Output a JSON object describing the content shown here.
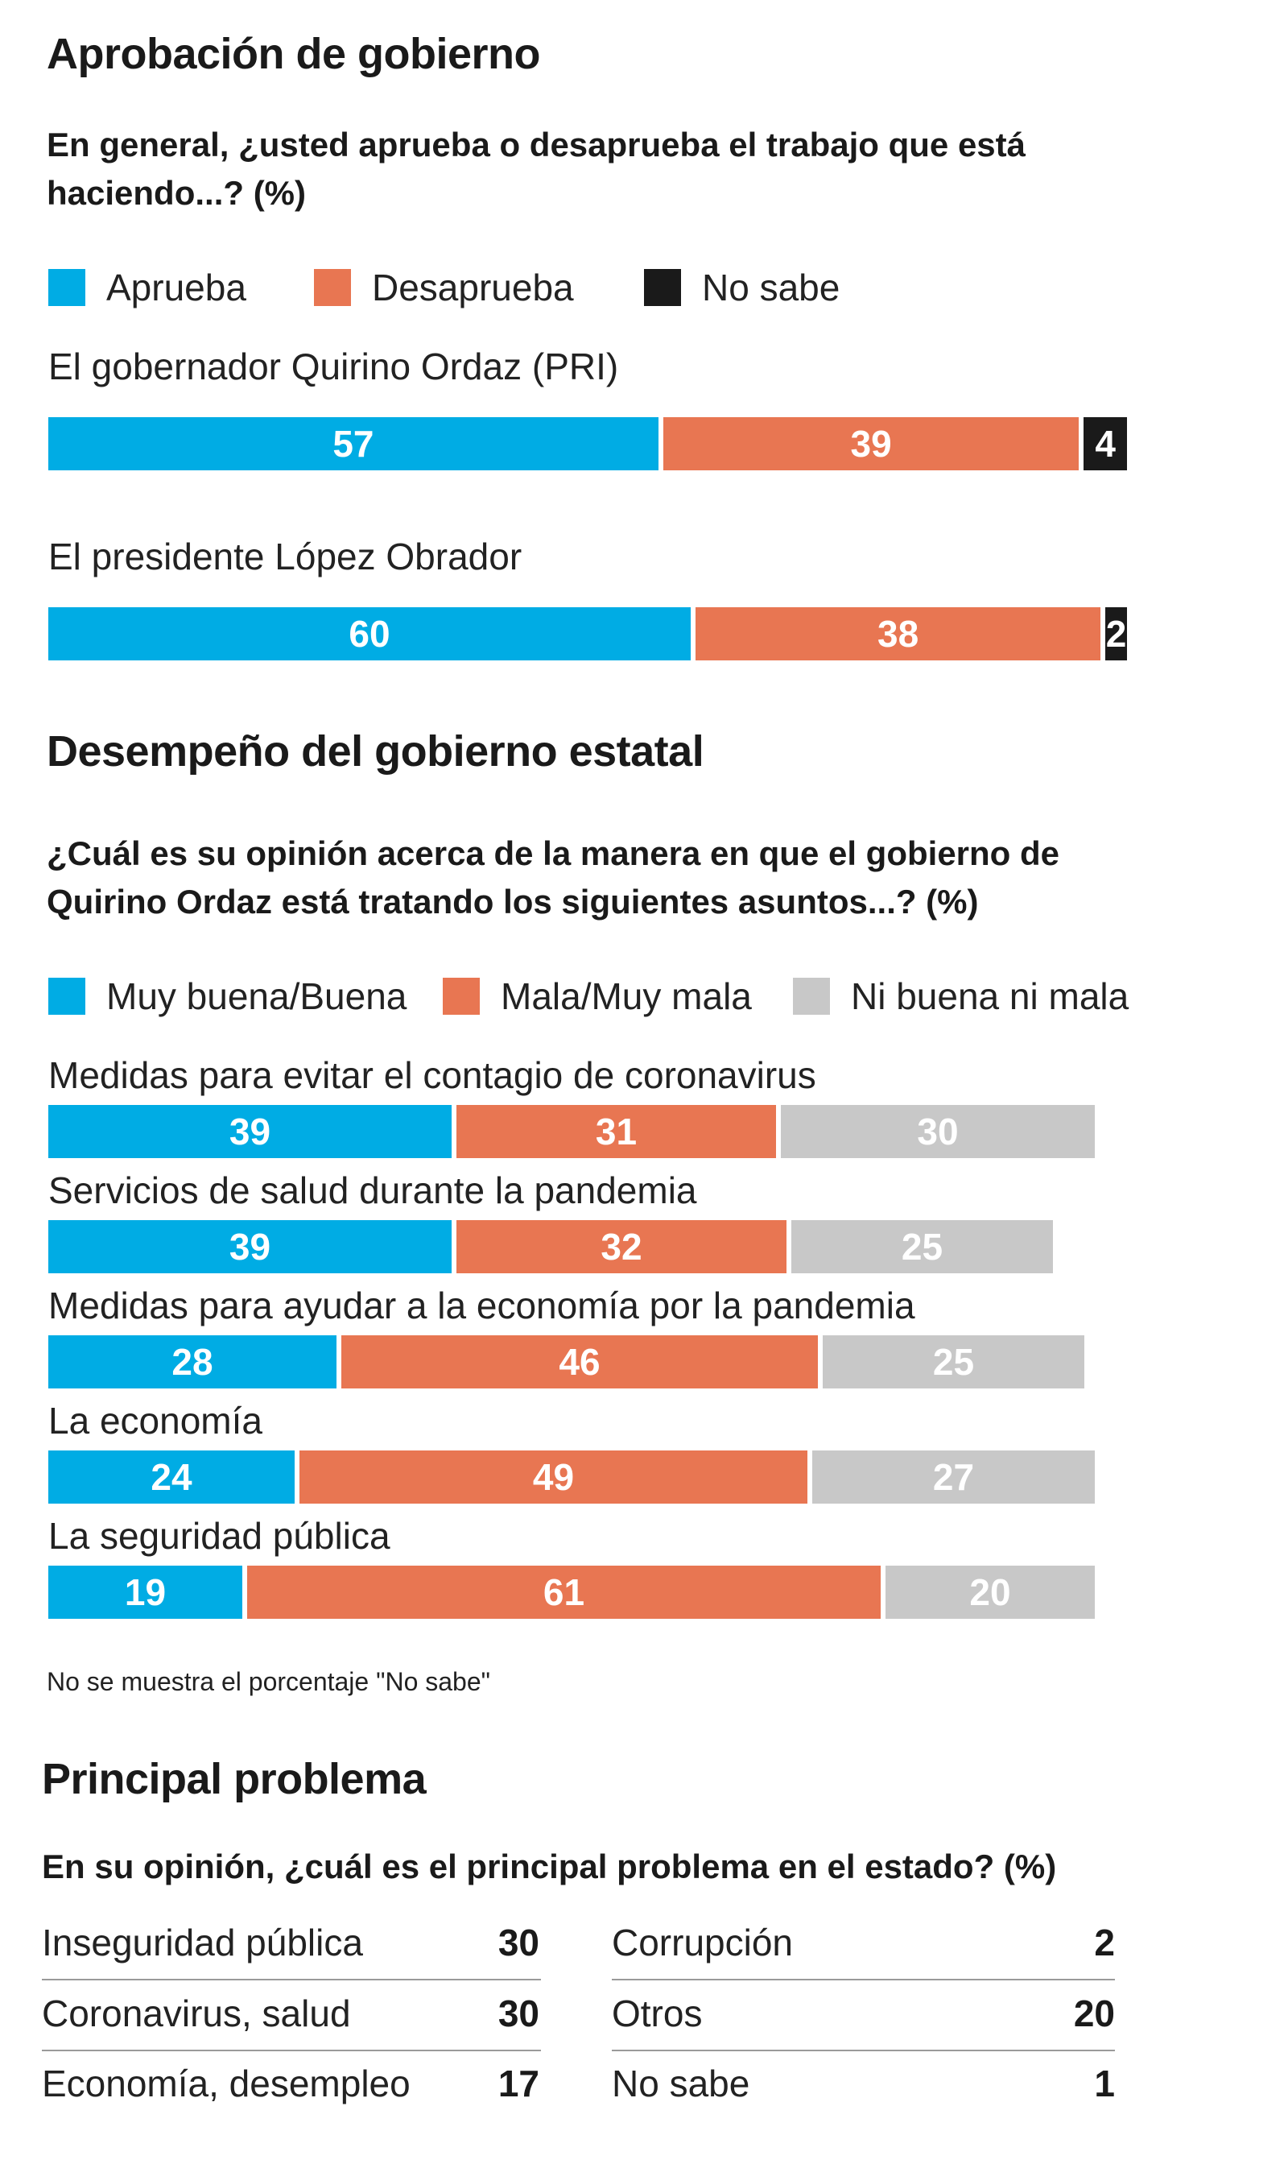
{
  "sections": {
    "aprobacion": {
      "title": "Aprobación de gobierno",
      "question": "En general, ¿usted aprueba o desaprueba el trabajo que está haciendo...? (%)"
    },
    "desempeno": {
      "title": "Desempeño del gobierno estatal",
      "question": "¿Cuál es su opinión acerca de la manera en que el gobierno de Quirino Ordaz está tratando los siguientes asuntos...? (%)",
      "note": "No se muestra el porcentaje \"No sabe\""
    },
    "problema": {
      "title": "Principal problema",
      "question": "En su opinión, ¿cuál es el principal problema en el estado? (%)"
    }
  },
  "colors": {
    "blue": "#00ACE4",
    "orange": "#E87652",
    "black": "#1a1a1a",
    "gray": "#C8C8C8"
  },
  "chart_data": [
    {
      "type": "bar",
      "orientation": "horizontal",
      "stacked": true,
      "title": "Aprobación de gobierno",
      "categories": [
        "El gobernador Quirino Ordaz (PRI)",
        "El presidente López Obrador"
      ],
      "series": [
        {
          "name": "Aprueba",
          "values": [
            57,
            60
          ],
          "color": "#00ACE4"
        },
        {
          "name": "Desaprueba",
          "values": [
            39,
            38
          ],
          "color": "#E87652"
        },
        {
          "name": "No sabe",
          "values": [
            4,
            2
          ],
          "color": "#1a1a1a"
        }
      ],
      "legend": "top-left",
      "grid": false
    },
    {
      "type": "bar",
      "orientation": "horizontal",
      "stacked": true,
      "title": "Desempeño del gobierno estatal",
      "categories": [
        "Medidas para evitar el contagio de coronavirus",
        "Servicios de salud durante la pandemia",
        "Medidas para ayudar a la economía por la pandemia",
        "La economía",
        "La seguridad pública"
      ],
      "series": [
        {
          "name": "Muy buena/Buena",
          "values": [
            39,
            39,
            28,
            24,
            19
          ],
          "color": "#00ACE4"
        },
        {
          "name": "Mala/Muy mala",
          "values": [
            31,
            32,
            46,
            49,
            61
          ],
          "color": "#E87652"
        },
        {
          "name": "Ni buena ni mala",
          "values": [
            30,
            25,
            25,
            27,
            20
          ],
          "color": "#C8C8C8"
        }
      ],
      "legend": "top-left",
      "grid": false
    },
    {
      "type": "table",
      "title": "Principal problema",
      "columns": [
        [
          {
            "label": "Inseguridad pública",
            "value": 30
          },
          {
            "label": "Coronavirus, salud",
            "value": 30
          },
          {
            "label": "Economía, desempleo",
            "value": 17
          }
        ],
        [
          {
            "label": "Corrupción",
            "value": 2
          },
          {
            "label": "Otros",
            "value": 20
          },
          {
            "label": "No sabe",
            "value": 1
          }
        ]
      ]
    }
  ]
}
